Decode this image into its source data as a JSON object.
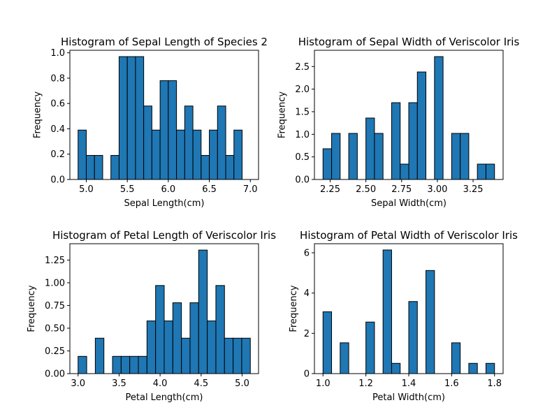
{
  "chart_data": [
    {
      "type": "bar",
      "title": "Histogram of Sepal Length of Species 2",
      "xlabel": "Sepal Length(cm)",
      "ylabel": "Frequency",
      "bar_color": "#1f77b4",
      "edge_color": "#000000",
      "xlim": [
        4.8,
        7.1
      ],
      "ylim": [
        0,
        1.02
      ],
      "xticks": [
        5.0,
        5.5,
        6.0,
        6.5,
        7.0
      ],
      "xtick_labels": [
        "5.0",
        "5.5",
        "6.0",
        "6.5",
        "7.0"
      ],
      "yticks": [
        0.0,
        0.2,
        0.4,
        0.6,
        0.8,
        1.0
      ],
      "ytick_labels": [
        "0.0",
        "0.2",
        "0.4",
        "0.6",
        "0.8",
        "1.0"
      ],
      "bins": [
        {
          "x0": 4.9,
          "x1": 5.0,
          "value": 0.39
        },
        {
          "x0": 5.0,
          "x1": 5.1,
          "value": 0.19
        },
        {
          "x0": 5.1,
          "x1": 5.2,
          "value": 0.19
        },
        {
          "x0": 5.2,
          "x1": 5.3,
          "value": 0.0
        },
        {
          "x0": 5.3,
          "x1": 5.4,
          "value": 0.19
        },
        {
          "x0": 5.4,
          "x1": 5.5,
          "value": 0.97
        },
        {
          "x0": 5.5,
          "x1": 5.6,
          "value": 0.97
        },
        {
          "x0": 5.6,
          "x1": 5.7,
          "value": 0.97
        },
        {
          "x0": 5.7,
          "x1": 5.8,
          "value": 0.58
        },
        {
          "x0": 5.8,
          "x1": 5.9,
          "value": 0.39
        },
        {
          "x0": 5.9,
          "x1": 6.0,
          "value": 0.78
        },
        {
          "x0": 6.0,
          "x1": 6.1,
          "value": 0.78
        },
        {
          "x0": 6.1,
          "x1": 6.2,
          "value": 0.39
        },
        {
          "x0": 6.2,
          "x1": 6.3,
          "value": 0.58
        },
        {
          "x0": 6.3,
          "x1": 6.4,
          "value": 0.39
        },
        {
          "x0": 6.4,
          "x1": 6.5,
          "value": 0.19
        },
        {
          "x0": 6.5,
          "x1": 6.6,
          "value": 0.39
        },
        {
          "x0": 6.6,
          "x1": 6.7,
          "value": 0.58
        },
        {
          "x0": 6.7,
          "x1": 6.8,
          "value": 0.19
        },
        {
          "x0": 6.8,
          "x1": 6.9,
          "value": 0.39
        }
      ]
    },
    {
      "type": "bar",
      "title": "Histogram of Sepal Width of Veriscolor Iris",
      "xlabel": "Sepal Width(cm)",
      "ylabel": "Frequency",
      "bar_color": "#1f77b4",
      "edge_color": "#000000",
      "xlim": [
        2.14,
        3.46
      ],
      "ylim": [
        0,
        2.86
      ],
      "xticks": [
        2.25,
        2.5,
        2.75,
        3.0,
        3.25
      ],
      "xtick_labels": [
        "2.25",
        "2.50",
        "2.75",
        "3.00",
        "3.25"
      ],
      "yticks": [
        0.0,
        0.5,
        1.0,
        1.5,
        2.0,
        2.5
      ],
      "ytick_labels": [
        "0.0",
        "0.5",
        "1.0",
        "1.5",
        "2.0",
        "2.5"
      ],
      "bins": [
        {
          "x0": 2.2,
          "x1": 2.26,
          "value": 0.68
        },
        {
          "x0": 2.26,
          "x1": 2.32,
          "value": 1.02
        },
        {
          "x0": 2.32,
          "x1": 2.38,
          "value": 0.0
        },
        {
          "x0": 2.38,
          "x1": 2.44,
          "value": 1.02
        },
        {
          "x0": 2.44,
          "x1": 2.5,
          "value": 0.0
        },
        {
          "x0": 2.5,
          "x1": 2.56,
          "value": 1.36
        },
        {
          "x0": 2.56,
          "x1": 2.62,
          "value": 1.02
        },
        {
          "x0": 2.62,
          "x1": 2.68,
          "value": 0.0
        },
        {
          "x0": 2.68,
          "x1": 2.74,
          "value": 1.7
        },
        {
          "x0": 2.74,
          "x1": 2.8,
          "value": 0.34
        },
        {
          "x0": 2.8,
          "x1": 2.86,
          "value": 1.7
        },
        {
          "x0": 2.86,
          "x1": 2.92,
          "value": 2.38
        },
        {
          "x0": 2.92,
          "x1": 2.98,
          "value": 0.0
        },
        {
          "x0": 2.98,
          "x1": 3.04,
          "value": 2.72
        },
        {
          "x0": 3.04,
          "x1": 3.1,
          "value": 0.0
        },
        {
          "x0": 3.1,
          "x1": 3.16,
          "value": 1.02
        },
        {
          "x0": 3.16,
          "x1": 3.22,
          "value": 1.02
        },
        {
          "x0": 3.22,
          "x1": 3.28,
          "value": 0.0
        },
        {
          "x0": 3.28,
          "x1": 3.34,
          "value": 0.34
        },
        {
          "x0": 3.34,
          "x1": 3.4,
          "value": 0.34
        }
      ]
    },
    {
      "type": "bar",
      "title": "Histogram of Petal Length of Veriscolor Iris",
      "xlabel": "Petal Length(cm)",
      "ylabel": "Frequency",
      "bar_color": "#1f77b4",
      "edge_color": "#000000",
      "xlim": [
        2.9,
        5.2
      ],
      "ylim": [
        0,
        1.43
      ],
      "xticks": [
        3.0,
        3.5,
        4.0,
        4.5,
        5.0
      ],
      "xtick_labels": [
        "3.0",
        "3.5",
        "4.0",
        "4.5",
        "5.0"
      ],
      "yticks": [
        0.0,
        0.25,
        0.5,
        0.75,
        1.0,
        1.25
      ],
      "ytick_labels": [
        "0.00",
        "0.25",
        "0.50",
        "0.75",
        "1.00",
        "1.25"
      ],
      "bins": [
        {
          "x0": 3.0,
          "x1": 3.105,
          "value": 0.19
        },
        {
          "x0": 3.105,
          "x1": 3.21,
          "value": 0.0
        },
        {
          "x0": 3.21,
          "x1": 3.315,
          "value": 0.39
        },
        {
          "x0": 3.315,
          "x1": 3.42,
          "value": 0.0
        },
        {
          "x0": 3.42,
          "x1": 3.525,
          "value": 0.19
        },
        {
          "x0": 3.525,
          "x1": 3.63,
          "value": 0.19
        },
        {
          "x0": 3.63,
          "x1": 3.735,
          "value": 0.19
        },
        {
          "x0": 3.735,
          "x1": 3.84,
          "value": 0.19
        },
        {
          "x0": 3.84,
          "x1": 3.945,
          "value": 0.58
        },
        {
          "x0": 3.945,
          "x1": 4.05,
          "value": 0.97
        },
        {
          "x0": 4.05,
          "x1": 4.155,
          "value": 0.58
        },
        {
          "x0": 4.155,
          "x1": 4.26,
          "value": 0.78
        },
        {
          "x0": 4.26,
          "x1": 4.365,
          "value": 0.39
        },
        {
          "x0": 4.365,
          "x1": 4.47,
          "value": 0.78
        },
        {
          "x0": 4.47,
          "x1": 4.575,
          "value": 1.36
        },
        {
          "x0": 4.575,
          "x1": 4.68,
          "value": 0.58
        },
        {
          "x0": 4.68,
          "x1": 4.785,
          "value": 0.97
        },
        {
          "x0": 4.785,
          "x1": 4.89,
          "value": 0.39
        },
        {
          "x0": 4.89,
          "x1": 4.995,
          "value": 0.39
        },
        {
          "x0": 4.995,
          "x1": 5.1,
          "value": 0.39
        }
      ]
    },
    {
      "type": "bar",
      "title": "Histogram of Petal Width of Veriscolor Iris",
      "xlabel": "Petal Width(cm)",
      "ylabel": "Frequency",
      "bar_color": "#1f77b4",
      "edge_color": "#000000",
      "xlim": [
        0.96,
        1.84
      ],
      "ylim": [
        0,
        6.45
      ],
      "xticks": [
        1.0,
        1.2,
        1.4,
        1.6,
        1.8
      ],
      "xtick_labels": [
        "1.0",
        "1.2",
        "1.4",
        "1.6",
        "1.8"
      ],
      "yticks": [
        0,
        2,
        4,
        6
      ],
      "ytick_labels": [
        "0",
        "2",
        "4",
        "6"
      ],
      "bins": [
        {
          "x0": 1.0,
          "x1": 1.04,
          "value": 3.07
        },
        {
          "x0": 1.04,
          "x1": 1.08,
          "value": 0.0
        },
        {
          "x0": 1.08,
          "x1": 1.12,
          "value": 1.53
        },
        {
          "x0": 1.12,
          "x1": 1.16,
          "value": 0.0
        },
        {
          "x0": 1.16,
          "x1": 1.2,
          "value": 0.0
        },
        {
          "x0": 1.2,
          "x1": 1.24,
          "value": 2.56
        },
        {
          "x0": 1.24,
          "x1": 1.28,
          "value": 0.0
        },
        {
          "x0": 1.28,
          "x1": 1.32,
          "value": 6.14
        },
        {
          "x0": 1.32,
          "x1": 1.36,
          "value": 0.51
        },
        {
          "x0": 1.36,
          "x1": 1.4,
          "value": 0.0
        },
        {
          "x0": 1.4,
          "x1": 1.44,
          "value": 3.58
        },
        {
          "x0": 1.44,
          "x1": 1.48,
          "value": 0.0
        },
        {
          "x0": 1.48,
          "x1": 1.52,
          "value": 5.12
        },
        {
          "x0": 1.52,
          "x1": 1.56,
          "value": 0.0
        },
        {
          "x0": 1.56,
          "x1": 1.6,
          "value": 0.0
        },
        {
          "x0": 1.6,
          "x1": 1.64,
          "value": 1.53
        },
        {
          "x0": 1.64,
          "x1": 1.68,
          "value": 0.0
        },
        {
          "x0": 1.68,
          "x1": 1.72,
          "value": 0.51
        },
        {
          "x0": 1.72,
          "x1": 1.76,
          "value": 0.0
        },
        {
          "x0": 1.76,
          "x1": 1.8,
          "value": 0.51
        }
      ]
    }
  ]
}
